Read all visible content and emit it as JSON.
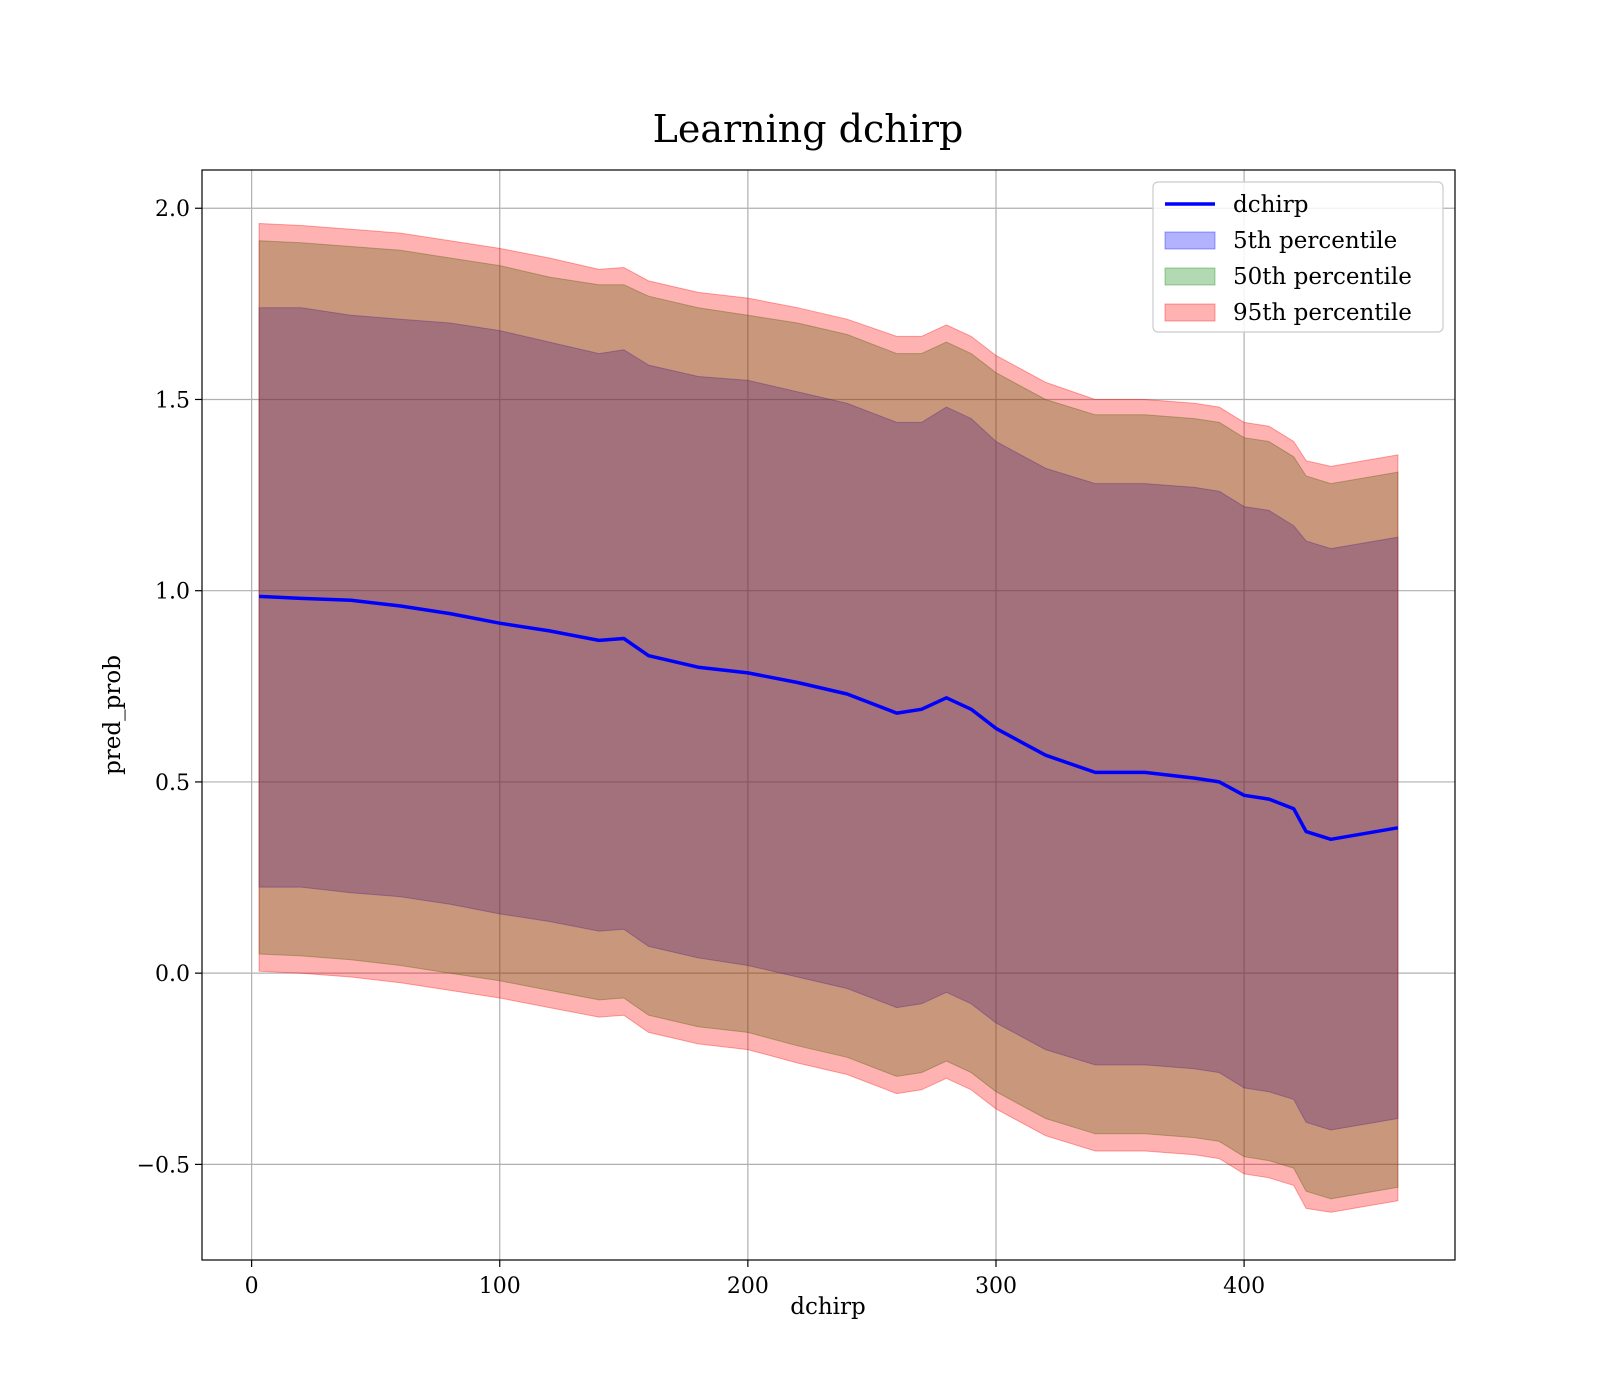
{
  "chart_data": {
    "type": "line",
    "title": "Learning dchirp",
    "xlabel": "dchirp",
    "ylabel": "pred_prob",
    "xlim": [
      -20,
      485
    ],
    "ylim": [
      -0.75,
      2.1
    ],
    "xticks": [
      0,
      100,
      200,
      300,
      400
    ],
    "yticks": [
      -0.5,
      0.0,
      0.5,
      1.0,
      1.5,
      2.0
    ],
    "xtick_labels": [
      "0",
      "100",
      "200",
      "300",
      "400"
    ],
    "ytick_labels": [
      "−0.5",
      "0.0",
      "0.5",
      "1.0",
      "1.5",
      "2.0"
    ],
    "grid": true,
    "legend_position": "top-right",
    "legend": [
      "dchirp",
      "5th percentile",
      "50th percentile",
      "95th percentile"
    ],
    "colors": {
      "line": "#0000ff",
      "band_5": "#0000ff",
      "band_50": "#008000",
      "band_95": "#ff0000"
    },
    "x": [
      3,
      20,
      40,
      60,
      80,
      100,
      120,
      140,
      150,
      160,
      180,
      200,
      220,
      240,
      260,
      270,
      280,
      290,
      300,
      320,
      340,
      360,
      380,
      390,
      400,
      410,
      420,
      425,
      435,
      462
    ],
    "line": [
      0.985,
      0.98,
      0.975,
      0.96,
      0.94,
      0.915,
      0.895,
      0.87,
      0.875,
      0.83,
      0.8,
      0.785,
      0.76,
      0.73,
      0.68,
      0.69,
      0.72,
      0.69,
      0.64,
      0.57,
      0.525,
      0.525,
      0.51,
      0.5,
      0.465,
      0.455,
      0.43,
      0.37,
      0.35,
      0.38
    ],
    "bands": [
      {
        "name": "5th percentile",
        "upper": [
          1.74,
          1.74,
          1.72,
          1.71,
          1.7,
          1.68,
          1.65,
          1.62,
          1.63,
          1.59,
          1.56,
          1.55,
          1.52,
          1.49,
          1.44,
          1.44,
          1.48,
          1.45,
          1.39,
          1.32,
          1.28,
          1.28,
          1.27,
          1.26,
          1.22,
          1.21,
          1.17,
          1.13,
          1.11,
          1.14
        ],
        "lower": [
          0.225,
          0.225,
          0.21,
          0.2,
          0.18,
          0.155,
          0.135,
          0.11,
          0.115,
          0.07,
          0.04,
          0.02,
          -0.01,
          -0.04,
          -0.09,
          -0.08,
          -0.05,
          -0.08,
          -0.13,
          -0.2,
          -0.24,
          -0.24,
          -0.25,
          -0.26,
          -0.3,
          -0.31,
          -0.33,
          -0.39,
          -0.41,
          -0.38
        ]
      },
      {
        "name": "50th percentile",
        "upper": [
          1.915,
          1.91,
          1.9,
          1.89,
          1.87,
          1.85,
          1.82,
          1.8,
          1.8,
          1.77,
          1.74,
          1.72,
          1.7,
          1.67,
          1.62,
          1.62,
          1.65,
          1.62,
          1.57,
          1.5,
          1.46,
          1.46,
          1.45,
          1.44,
          1.4,
          1.39,
          1.35,
          1.3,
          1.28,
          1.31
        ],
        "lower": [
          0.05,
          0.045,
          0.035,
          0.02,
          0.0,
          -0.02,
          -0.045,
          -0.07,
          -0.065,
          -0.11,
          -0.14,
          -0.155,
          -0.19,
          -0.22,
          -0.27,
          -0.26,
          -0.23,
          -0.26,
          -0.31,
          -0.38,
          -0.42,
          -0.42,
          -0.43,
          -0.44,
          -0.48,
          -0.49,
          -0.51,
          -0.57,
          -0.59,
          -0.56
        ]
      },
      {
        "name": "95th percentile",
        "upper": [
          1.96,
          1.955,
          1.945,
          1.935,
          1.915,
          1.895,
          1.87,
          1.84,
          1.845,
          1.81,
          1.78,
          1.765,
          1.74,
          1.71,
          1.665,
          1.665,
          1.695,
          1.665,
          1.615,
          1.545,
          1.5,
          1.5,
          1.49,
          1.48,
          1.44,
          1.43,
          1.39,
          1.34,
          1.325,
          1.355
        ],
        "lower": [
          0.005,
          0.0,
          -0.01,
          -0.025,
          -0.045,
          -0.065,
          -0.09,
          -0.115,
          -0.11,
          -0.155,
          -0.185,
          -0.2,
          -0.235,
          -0.265,
          -0.315,
          -0.305,
          -0.275,
          -0.305,
          -0.355,
          -0.425,
          -0.465,
          -0.465,
          -0.475,
          -0.485,
          -0.525,
          -0.535,
          -0.555,
          -0.615,
          -0.625,
          -0.595
        ]
      }
    ]
  }
}
